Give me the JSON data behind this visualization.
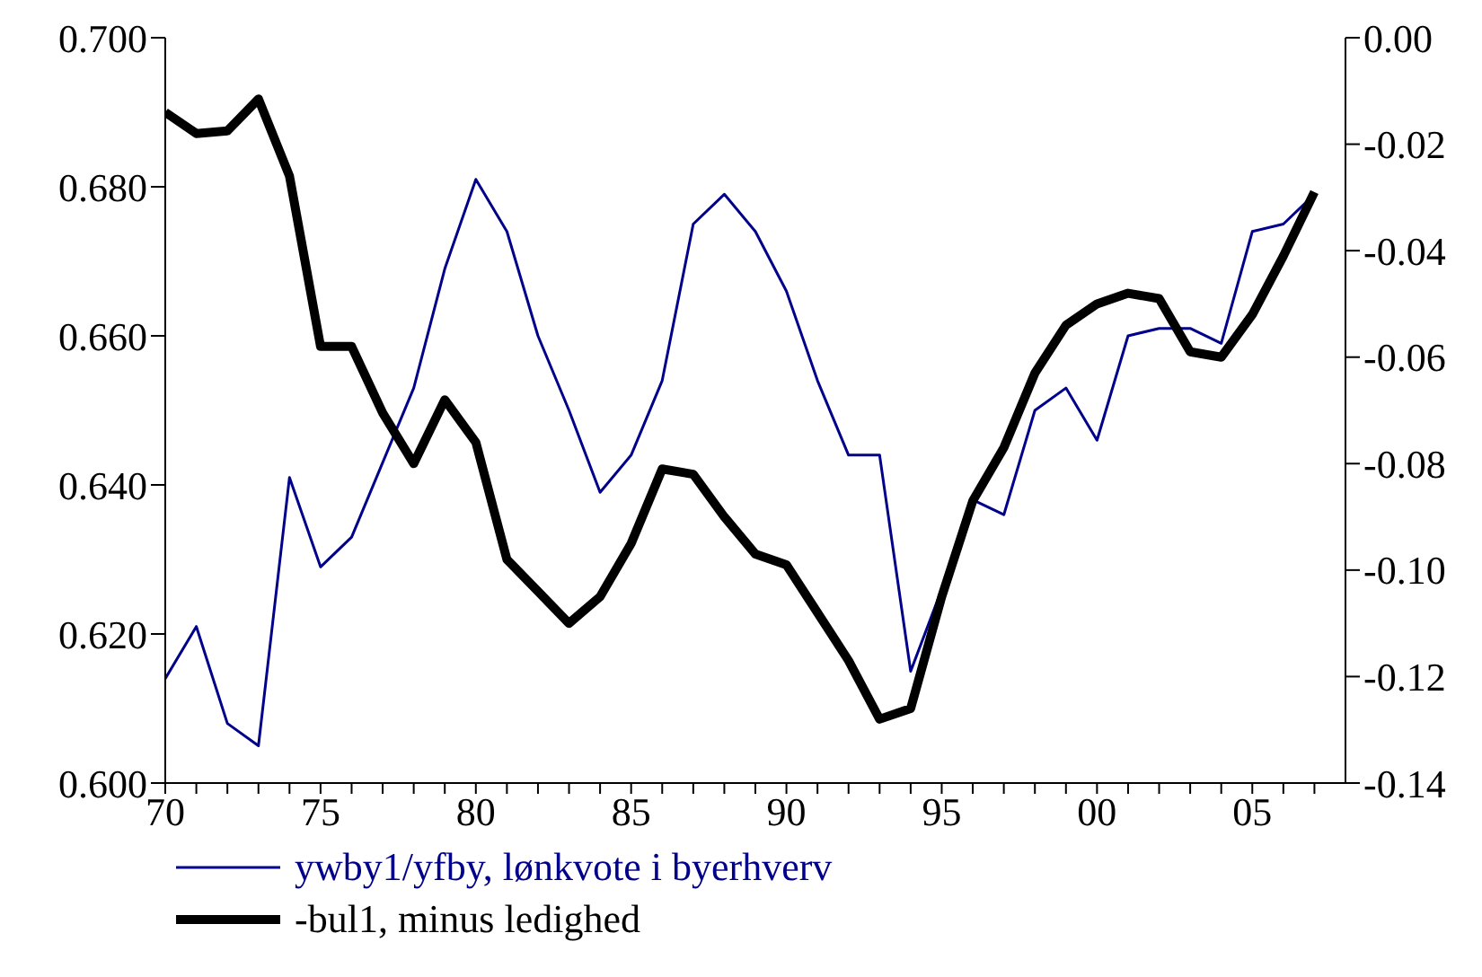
{
  "chart_data": {
    "type": "line",
    "x": [
      1970,
      1971,
      1972,
      1973,
      1974,
      1975,
      1976,
      1977,
      1978,
      1979,
      1980,
      1981,
      1982,
      1983,
      1984,
      1985,
      1986,
      1987,
      1988,
      1989,
      1990,
      1991,
      1992,
      1993,
      1994,
      1995,
      1996,
      1997,
      1998,
      1999,
      2000,
      2001,
      2002,
      2003,
      2004,
      2005,
      2006,
      2007
    ],
    "series": [
      {
        "name": "ywby1/yfby, lønkvote i byerhverv",
        "color": "#00008b",
        "values": [
          0.614,
          0.621,
          0.608,
          0.605,
          0.641,
          0.629,
          0.633,
          0.643,
          0.653,
          0.669,
          0.681,
          0.674,
          0.66,
          0.65,
          0.639,
          0.644,
          0.654,
          0.675,
          0.679,
          0.674,
          0.666,
          0.654,
          0.644,
          0.644,
          0.615,
          0.626,
          0.638,
          0.636,
          0.65,
          0.653,
          0.646,
          0.66,
          0.661,
          0.661,
          0.659,
          0.674,
          0.675,
          0.679
        ]
      },
      {
        "name": "-bul1,  minus ledighed",
        "color": "#000000",
        "axis": "y2",
        "values": [
          -0.014,
          -0.018,
          -0.0175,
          -0.0115,
          -0.026,
          -0.058,
          -0.058,
          -0.0705,
          -0.08,
          -0.068,
          -0.076,
          -0.098,
          -0.104,
          -0.11,
          -0.105,
          -0.095,
          -0.081,
          -0.082,
          -0.09,
          -0.097,
          -0.099,
          -0.108,
          -0.117,
          -0.128,
          -0.126,
          -0.105,
          -0.087,
          -0.077,
          -0.063,
          -0.054,
          -0.05,
          -0.048,
          -0.049,
          -0.059,
          -0.06,
          -0.052,
          -0.041,
          -0.029
        ]
      }
    ],
    "xlim": [
      1970,
      2008
    ],
    "xticks": [
      {
        "value": 1970,
        "label": "70"
      },
      {
        "value": 1971,
        "label": null
      },
      {
        "value": 1972,
        "label": null
      },
      {
        "value": 1973,
        "label": null
      },
      {
        "value": 1974,
        "label": null
      },
      {
        "value": 1975,
        "label": "75"
      },
      {
        "value": 1976,
        "label": null
      },
      {
        "value": 1977,
        "label": null
      },
      {
        "value": 1978,
        "label": null
      },
      {
        "value": 1979,
        "label": null
      },
      {
        "value": 1980,
        "label": "80"
      },
      {
        "value": 1981,
        "label": null
      },
      {
        "value": 1982,
        "label": null
      },
      {
        "value": 1983,
        "label": null
      },
      {
        "value": 1984,
        "label": null
      },
      {
        "value": 1985,
        "label": "85"
      },
      {
        "value": 1986,
        "label": null
      },
      {
        "value": 1987,
        "label": null
      },
      {
        "value": 1988,
        "label": null
      },
      {
        "value": 1989,
        "label": null
      },
      {
        "value": 1990,
        "label": "90"
      },
      {
        "value": 1991,
        "label": null
      },
      {
        "value": 1992,
        "label": null
      },
      {
        "value": 1993,
        "label": null
      },
      {
        "value": 1994,
        "label": null
      },
      {
        "value": 1995,
        "label": "95"
      },
      {
        "value": 1996,
        "label": null
      },
      {
        "value": 1997,
        "label": null
      },
      {
        "value": 1998,
        "label": null
      },
      {
        "value": 1999,
        "label": null
      },
      {
        "value": 2000,
        "label": "00"
      },
      {
        "value": 2001,
        "label": null
      },
      {
        "value": 2002,
        "label": null
      },
      {
        "value": 2003,
        "label": null
      },
      {
        "value": 2004,
        "label": null
      },
      {
        "value": 2005,
        "label": "05"
      },
      {
        "value": 2006,
        "label": null
      },
      {
        "value": 2007,
        "label": null
      }
    ],
    "ylim": [
      0.6,
      0.7
    ],
    "yticks": [
      {
        "value": 0.6,
        "label": "0.600"
      },
      {
        "value": 0.62,
        "label": "0.620"
      },
      {
        "value": 0.64,
        "label": "0.640"
      },
      {
        "value": 0.66,
        "label": "0.660"
      },
      {
        "value": 0.68,
        "label": "0.680"
      },
      {
        "value": 0.7,
        "label": "0.700"
      }
    ],
    "y2lim": [
      -0.14,
      0
    ],
    "y2ticks": [
      {
        "value": -0.14,
        "label": "-0.14"
      },
      {
        "value": -0.12,
        "label": "-0.12"
      },
      {
        "value": -0.1,
        "label": "-0.10"
      },
      {
        "value": -0.08,
        "label": "-0.08"
      },
      {
        "value": -0.06,
        "label": "-0.06"
      },
      {
        "value": -0.04,
        "label": "-0.04"
      },
      {
        "value": -0.02,
        "label": "-0.02"
      },
      {
        "value": 0,
        "label": "0.00"
      }
    ],
    "grid": false,
    "legend": "bottom",
    "marker": "none",
    "line_style": "solid"
  }
}
